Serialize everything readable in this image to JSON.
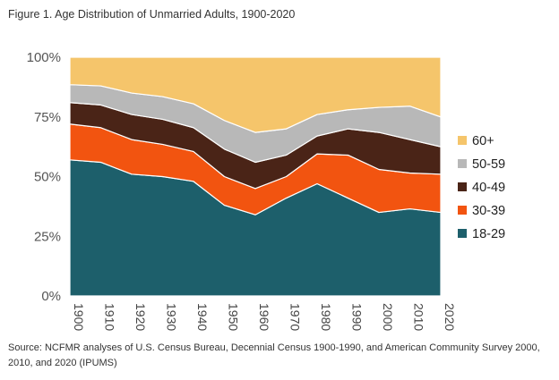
{
  "figure": {
    "title": "Figure 1.  Age Distribution of Unmarried Adults, 1900-2020",
    "source": "Source: NCFMR analyses of U.S. Census Bureau, Decennial Census 1900-1990, and American Community Survey 2000, 2010, and 2020 (IPUMS)"
  },
  "chart_data": {
    "type": "area",
    "stacked": true,
    "title": "Figure 1.  Age Distribution of Unmarried Adults, 1900-2020",
    "xlabel": "",
    "ylabel": "",
    "x": [
      "1900",
      "1910",
      "1920",
      "1930",
      "1940",
      "1950",
      "1960",
      "1970",
      "1980",
      "1990",
      "2000",
      "2010",
      "2020"
    ],
    "ylim": [
      0,
      100
    ],
    "yticks": [
      0,
      25,
      50,
      75,
      100
    ],
    "ytick_labels": [
      "0%",
      "25%",
      "50%",
      "75%",
      "100%"
    ],
    "grid": false,
    "legend_position": "right",
    "series": [
      {
        "name": "18-29",
        "color": "#1d5f6b",
        "values": [
          57,
          56,
          51,
          50,
          48,
          38,
          34,
          41,
          47,
          41,
          35,
          36.5,
          35
        ]
      },
      {
        "name": "30-39",
        "color": "#f25410",
        "values": [
          15,
          14.5,
          14.5,
          13.5,
          12.5,
          12,
          11,
          9,
          12.5,
          18,
          18,
          15,
          16
        ]
      },
      {
        "name": "40-49",
        "color": "#4a2417",
        "values": [
          9,
          9.5,
          10.5,
          10.5,
          10,
          11.5,
          11,
          9,
          7.5,
          11,
          15.5,
          14,
          11.5
        ]
      },
      {
        "name": "50-59",
        "color": "#b8b8b8",
        "values": [
          7.5,
          8,
          9,
          9.5,
          10,
          12,
          12.5,
          11,
          9,
          8,
          10.5,
          14,
          12.5
        ]
      },
      {
        "name": "60+",
        "color": "#f5c56b",
        "values": [
          11.5,
          12,
          15,
          16.5,
          19.5,
          26.5,
          31.5,
          30,
          24,
          22,
          21,
          20.5,
          25
        ]
      }
    ],
    "legend_order": [
      "60+",
      "50-59",
      "40-49",
      "30-39",
      "18-29"
    ]
  }
}
